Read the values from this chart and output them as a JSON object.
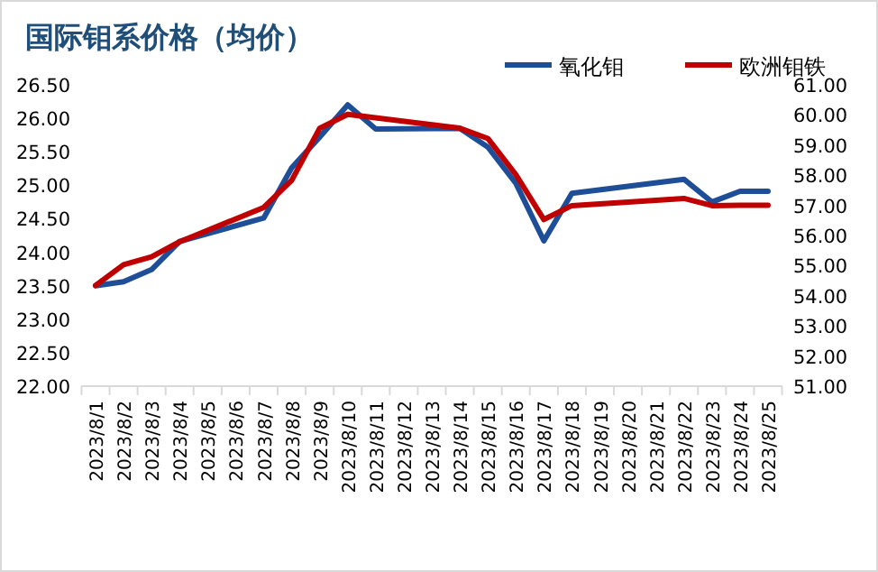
{
  "chart_data": {
    "type": "line",
    "title": "国际钼系价格（均价）",
    "categories": [
      "2023/8/1",
      "2023/8/2",
      "2023/8/3",
      "2023/8/4",
      "2023/8/5",
      "2023/8/6",
      "2023/8/7",
      "2023/8/8",
      "2023/8/9",
      "2023/8/10",
      "2023/8/11",
      "2023/8/12",
      "2023/8/13",
      "2023/8/14",
      "2023/8/15",
      "2023/8/16",
      "2023/8/17",
      "2023/8/18",
      "2023/8/19",
      "2023/8/20",
      "2023/8/21",
      "2023/8/22",
      "2023/8/23",
      "2023/8/24",
      "2023/8/25"
    ],
    "series": [
      {
        "name": "氧化钼",
        "color": "#1f4e99",
        "values": [
          23.5,
          23.56,
          23.74,
          24.16,
          null,
          null,
          24.51,
          25.26,
          25.72,
          26.2,
          25.84,
          null,
          null,
          25.85,
          25.57,
          25.03,
          24.17,
          24.88,
          null,
          null,
          null,
          25.09,
          24.75,
          24.91,
          24.91
        ]
      },
      {
        "name": "欧洲钼铁",
        "color": "#c00000",
        "axis": "y2",
        "values": [
          54.34,
          55.03,
          55.29,
          55.79,
          null,
          null,
          56.93,
          57.83,
          59.56,
          60.02,
          null,
          null,
          null,
          59.56,
          59.22,
          58.02,
          56.53,
          56.99,
          null,
          null,
          null,
          57.23,
          56.99,
          57.0,
          57.0
        ]
      }
    ],
    "ylim": [
      22,
      26.5
    ],
    "yticks": [
      {
        "value": 22,
        "label": "22.00"
      },
      {
        "value": 22.5,
        "label": "22.50"
      },
      {
        "value": 23,
        "label": "23.00"
      },
      {
        "value": 23.5,
        "label": "23.50"
      },
      {
        "value": 24,
        "label": "24.00"
      },
      {
        "value": 24.5,
        "label": "24.50"
      },
      {
        "value": 25,
        "label": "25.00"
      },
      {
        "value": 25.5,
        "label": "25.50"
      },
      {
        "value": 26,
        "label": "26.00"
      },
      {
        "value": 26.5,
        "label": "26.50"
      }
    ],
    "y2lim": [
      51,
      61
    ],
    "y2ticks": [
      {
        "value": 51,
        "label": "51.00"
      },
      {
        "value": 52,
        "label": "52.00"
      },
      {
        "value": 53,
        "label": "53.00"
      },
      {
        "value": 54,
        "label": "54.00"
      },
      {
        "value": 55,
        "label": "55.00"
      },
      {
        "value": 56,
        "label": "56.00"
      },
      {
        "value": 57,
        "label": "57.00"
      },
      {
        "value": 58,
        "label": "58.00"
      },
      {
        "value": 59,
        "label": "59.00"
      },
      {
        "value": 60,
        "label": "60.00"
      },
      {
        "value": 61,
        "label": "61.00"
      }
    ],
    "legend": "top right",
    "grid": false,
    "marker": "none",
    "line_style": "solid"
  }
}
